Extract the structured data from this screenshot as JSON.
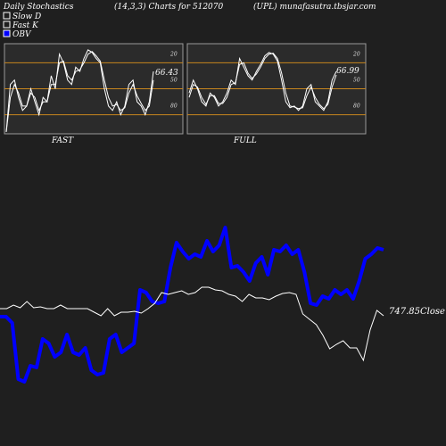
{
  "header": {
    "title": "Daily Stochastics",
    "params": "(14,3,3) Charts for 512070",
    "site": "(UPL) munafasutra.tbsjar.com"
  },
  "legend": [
    {
      "label": "Slow  D",
      "color": "#ffffff",
      "icon": "hollow-square-icon"
    },
    {
      "label": "Fast K",
      "color": "#ffffff",
      "icon": "hollow-square-icon"
    },
    {
      "label": "OBV",
      "color": "#0000ff",
      "icon": "filled-square-icon"
    }
  ],
  "colors": {
    "background": "#1f1f1f",
    "panel": "#2b2b2b",
    "level_line": "#c8861e",
    "obv": "#0000ff",
    "price": "#ffffff"
  },
  "chart_data": [
    {
      "type": "line",
      "title": "FAST",
      "ylim": [
        0,
        100
      ],
      "levels": [
        20,
        50,
        80
      ],
      "ytick_labels": [
        "80",
        "50",
        "20"
      ],
      "last_value_label": "66.43",
      "series": [
        {
          "values": [
            0,
            55,
            60,
            40,
            25,
            30,
            50,
            35,
            20,
            40,
            35,
            65,
            50,
            90,
            80,
            60,
            55,
            75,
            70,
            85,
            95,
            92,
            85,
            80,
            50,
            30,
            25,
            35,
            20,
            30,
            55,
            60,
            35,
            30,
            20,
            35,
            70
          ]
        },
        {
          "values": [
            0,
            40,
            55,
            45,
            30,
            30,
            45,
            40,
            25,
            35,
            35,
            55,
            55,
            80,
            82,
            65,
            60,
            70,
            72,
            80,
            90,
            93,
            88,
            82,
            60,
            40,
            30,
            32,
            25,
            28,
            45,
            55,
            42,
            33,
            25,
            30,
            60
          ]
        }
      ]
    },
    {
      "type": "line",
      "title": "FULL",
      "ylim": [
        0,
        100
      ],
      "levels": [
        20,
        50,
        80
      ],
      "ytick_labels": [
        "80",
        "50",
        "20"
      ],
      "last_value_label": "66.99",
      "series": [
        {
          "values": [
            45,
            60,
            50,
            35,
            30,
            45,
            40,
            30,
            35,
            45,
            60,
            55,
            85,
            75,
            65,
            60,
            70,
            78,
            88,
            92,
            90,
            82,
            60,
            35,
            28,
            30,
            25,
            30,
            50,
            55,
            35,
            30,
            25,
            35,
            60,
            70
          ]
        },
        {
          "values": [
            40,
            55,
            52,
            40,
            32,
            42,
            42,
            33,
            33,
            40,
            55,
            57,
            78,
            80,
            68,
            62,
            67,
            75,
            85,
            90,
            91,
            85,
            68,
            45,
            30,
            29,
            27,
            28,
            42,
            52,
            40,
            32,
            27,
            32,
            52,
            66
          ]
        }
      ]
    },
    {
      "type": "line",
      "last_value_label": "747.85Close",
      "series": [
        {
          "name": "OBV",
          "values": [
            -5,
            -5,
            -12,
            -75,
            -78,
            -60,
            -62,
            -30,
            -35,
            -50,
            -45,
            -25,
            -45,
            -48,
            -40,
            -65,
            -70,
            -68,
            -30,
            -25,
            -45,
            -40,
            -35,
            25,
            22,
            12,
            10,
            12,
            50,
            78,
            68,
            60,
            65,
            62,
            80,
            68,
            75,
            95,
            50,
            52,
            45,
            35,
            55,
            62,
            42,
            70,
            68,
            75,
            65,
            70,
            45,
            10,
            8,
            18,
            15,
            25,
            20,
            25,
            15,
            35,
            60,
            65,
            72,
            70
          ]
        },
        {
          "name": "Price",
          "values": [
            0,
            0,
            4,
            1,
            8,
            1,
            2,
            0,
            0,
            4,
            0,
            0,
            0,
            0,
            -4,
            -8,
            0,
            -8,
            -4,
            -4,
            -3,
            -5,
            0,
            6,
            18,
            16,
            18,
            20,
            16,
            18,
            24,
            24,
            21,
            20,
            16,
            14,
            8,
            16,
            12,
            12,
            10,
            14,
            17,
            18,
            16,
            -6,
            -12,
            -18,
            -30,
            -45,
            -40,
            -36,
            -44,
            -44,
            -58,
            -24,
            -2,
            -8
          ]
        }
      ]
    }
  ],
  "panels": {
    "fast_label": "FAST",
    "full_label": "FULL"
  }
}
